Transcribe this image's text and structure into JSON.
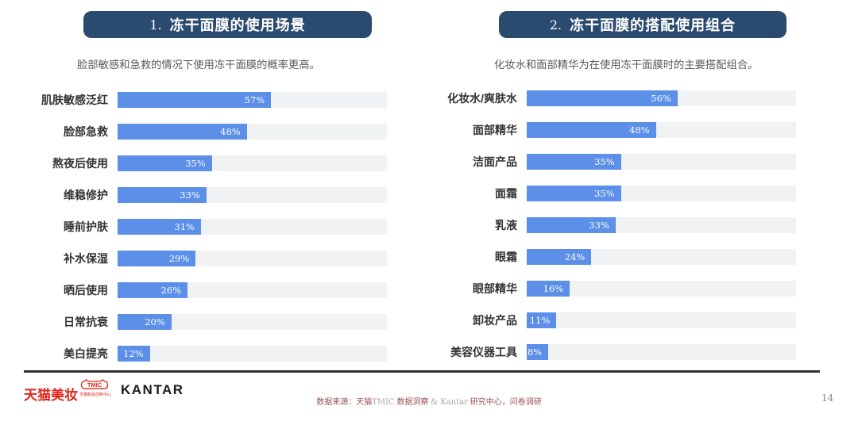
{
  "chart_data": [
    {
      "type": "bar",
      "index_label": "1.",
      "title": "冻干面膜的使用场景",
      "subtitle": "脸部敏感和急救的情况下使用冻干面膜的概率更高。",
      "categories": [
        "肌肤敏感泛红",
        "脸部急救",
        "熬夜后使用",
        "维稳修护",
        "睡前护肤",
        "补水保湿",
        "晒后使用",
        "日常抗衰",
        "美白提亮"
      ],
      "values": [
        57,
        48,
        35,
        33,
        31,
        29,
        26,
        20,
        12
      ],
      "value_suffix": "%",
      "xlim": [
        0,
        100
      ],
      "orientation": "horizontal"
    },
    {
      "type": "bar",
      "index_label": "2.",
      "title": "冻干面膜的搭配使用组合",
      "subtitle": "化妆水和面部精华为在使用冻干面膜时的主要搭配组合。",
      "categories": [
        "化妆水/爽肤水",
        "面部精华",
        "洁面产品",
        "面霜",
        "乳液",
        "眼霜",
        "眼部精华",
        "卸妆产品",
        "美容仪器工具"
      ],
      "values": [
        56,
        48,
        35,
        35,
        33,
        24,
        16,
        11,
        8
      ],
      "value_suffix": "%",
      "xlim": [
        0,
        100
      ],
      "orientation": "horizontal"
    }
  ],
  "colors": {
    "bar": "#5B8FE8",
    "track": "#F1F2F3",
    "title_bg": "#2B4A70",
    "brand_red": "#E1251B",
    "source_red": "#9C5050"
  },
  "footer": {
    "tmall_logo": "天猫美妆",
    "tmic_label": "TMIC",
    "tmic_caption": "天猫新品创新中心",
    "kantar_logo": "KANTAR",
    "source": {
      "seg1": "数据来源：天猫",
      "seg2": "TMIC",
      "seg3": " 数据洞察 ",
      "seg4": "& Kantar",
      "seg5": " 研究中心，问卷调研"
    },
    "page_number": "14"
  }
}
